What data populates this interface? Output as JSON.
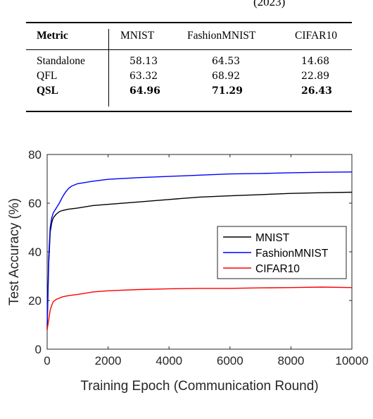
{
  "caption_tail": "(2023)",
  "table": {
    "headers": [
      "Metric",
      "MNIST",
      "FashionMNIST",
      "CIFAR10"
    ],
    "rows": [
      {
        "metric": "Standalone",
        "values": [
          "58.13",
          "64.53",
          "14.68"
        ],
        "bold": false
      },
      {
        "metric": "QFL",
        "values": [
          "63.32",
          "68.92",
          "22.89"
        ],
        "bold": false
      },
      {
        "metric": "QSL",
        "values": [
          "64.96",
          "71.29",
          "26.43"
        ],
        "bold": true
      }
    ]
  },
  "chart_data": {
    "type": "line",
    "xlabel": "Training Epoch (Communication Round)",
    "ylabel": "Test Accuracy (%)",
    "xlim": [
      0,
      10000
    ],
    "ylim": [
      0,
      80
    ],
    "xticks": [
      0,
      2000,
      4000,
      6000,
      8000,
      10000
    ],
    "yticks": [
      0,
      20,
      40,
      60,
      80
    ],
    "grid": false,
    "legend_position": "center-right",
    "series": [
      {
        "name": "MNIST",
        "color": "#000000",
        "x": [
          0,
          50,
          100,
          150,
          200,
          300,
          400,
          500,
          700,
          1000,
          1500,
          2000,
          3000,
          4000,
          5000,
          6000,
          7000,
          8000,
          9000,
          10000
        ],
        "y": [
          8,
          35,
          48,
          52,
          54,
          55.5,
          56.5,
          57,
          57.5,
          58,
          59,
          59.5,
          60.5,
          61.5,
          62.5,
          63,
          63.5,
          64,
          64.3,
          64.5
        ]
      },
      {
        "name": "FashionMNIST",
        "color": "#0000ff",
        "x": [
          0,
          50,
          100,
          150,
          200,
          300,
          400,
          500,
          600,
          700,
          800,
          1000,
          1500,
          2000,
          3000,
          4000,
          5000,
          6000,
          7000,
          8000,
          9000,
          10000
        ],
        "y": [
          10,
          38,
          50,
          54,
          56,
          58,
          60,
          62.5,
          64.5,
          66,
          67,
          68,
          69,
          69.8,
          70.5,
          71,
          71.5,
          72,
          72.2,
          72.5,
          72.7,
          72.8
        ]
      },
      {
        "name": "CIFAR10",
        "color": "#ff0000",
        "x": [
          0,
          50,
          100,
          150,
          200,
          300,
          400,
          500,
          700,
          1000,
          1500,
          2000,
          3000,
          4000,
          5000,
          6000,
          7000,
          8000,
          9000,
          10000
        ],
        "y": [
          8,
          12,
          16,
          18,
          19.5,
          20.5,
          21,
          21.5,
          22,
          22.5,
          23.5,
          24,
          24.5,
          24.8,
          25,
          25,
          25.2,
          25.3,
          25.5,
          25.3
        ]
      }
    ]
  }
}
